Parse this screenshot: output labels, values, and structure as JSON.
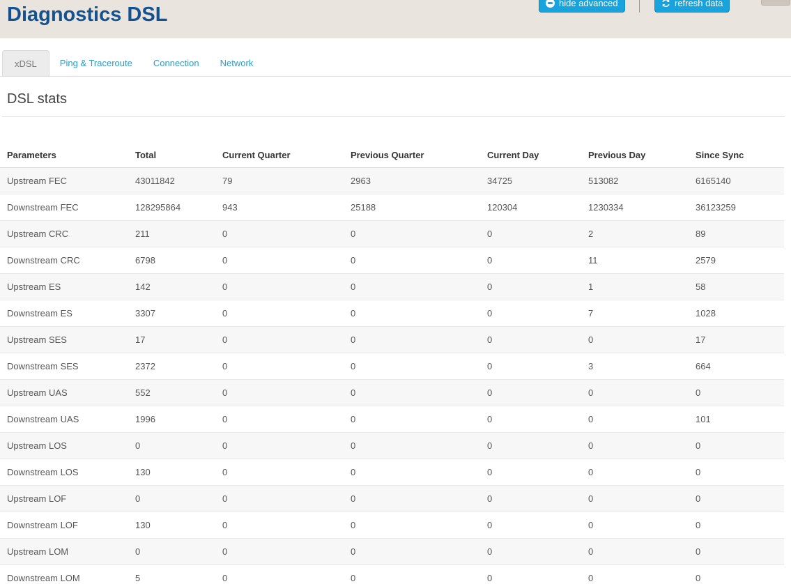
{
  "header": {
    "title": "Diagnostics DSL",
    "hide_advanced_label": "hide advanced",
    "refresh_label": "refresh data"
  },
  "tabs": [
    {
      "label": "xDSL",
      "active": true
    },
    {
      "label": "Ping & Traceroute",
      "active": false
    },
    {
      "label": "Connection",
      "active": false
    },
    {
      "label": "Network",
      "active": false
    }
  ],
  "section": {
    "title": "DSL stats"
  },
  "table": {
    "columns": [
      "Parameters",
      "Total",
      "Current Quarter",
      "Previous Quarter",
      "Current Day",
      "Previous Day",
      "Since Sync"
    ],
    "rows": [
      [
        "Upstream FEC",
        "43011842",
        "79",
        "2963",
        "34725",
        "513082",
        "6165140"
      ],
      [
        "Downstream FEC",
        "128295864",
        "943",
        "25188",
        "120304",
        "1230334",
        "36123259"
      ],
      [
        "Upstream CRC",
        "211",
        "0",
        "0",
        "0",
        "2",
        "89"
      ],
      [
        "Downstream CRC",
        "6798",
        "0",
        "0",
        "0",
        "11",
        "2579"
      ],
      [
        "Upstream ES",
        "142",
        "0",
        "0",
        "0",
        "1",
        "58"
      ],
      [
        "Downstream ES",
        "3307",
        "0",
        "0",
        "0",
        "7",
        "1028"
      ],
      [
        "Upstream SES",
        "17",
        "0",
        "0",
        "0",
        "0",
        "17"
      ],
      [
        "Downstream SES",
        "2372",
        "0",
        "0",
        "0",
        "3",
        "664"
      ],
      [
        "Upstream UAS",
        "552",
        "0",
        "0",
        "0",
        "0",
        "0"
      ],
      [
        "Downstream UAS",
        "1996",
        "0",
        "0",
        "0",
        "0",
        "101"
      ],
      [
        "Upstream LOS",
        "0",
        "0",
        "0",
        "0",
        "0",
        "0"
      ],
      [
        "Downstream LOS",
        "130",
        "0",
        "0",
        "0",
        "0",
        "0"
      ],
      [
        "Upstream LOF",
        "0",
        "0",
        "0",
        "0",
        "0",
        "0"
      ],
      [
        "Downstream LOF",
        "130",
        "0",
        "0",
        "0",
        "0",
        "0"
      ],
      [
        "Upstream LOM",
        "0",
        "0",
        "0",
        "0",
        "0",
        "0"
      ],
      [
        "Downstream LOM",
        "5",
        "0",
        "0",
        "0",
        "0",
        "0"
      ]
    ]
  },
  "icons": {
    "hide_advanced": "minus-circle-icon",
    "refresh": "refresh-icon"
  },
  "colors": {
    "title_blue": "#15518f",
    "button_blue": "#19a3dc",
    "tab_link": "#2d9cc3",
    "header_band": "#e9e5de"
  }
}
